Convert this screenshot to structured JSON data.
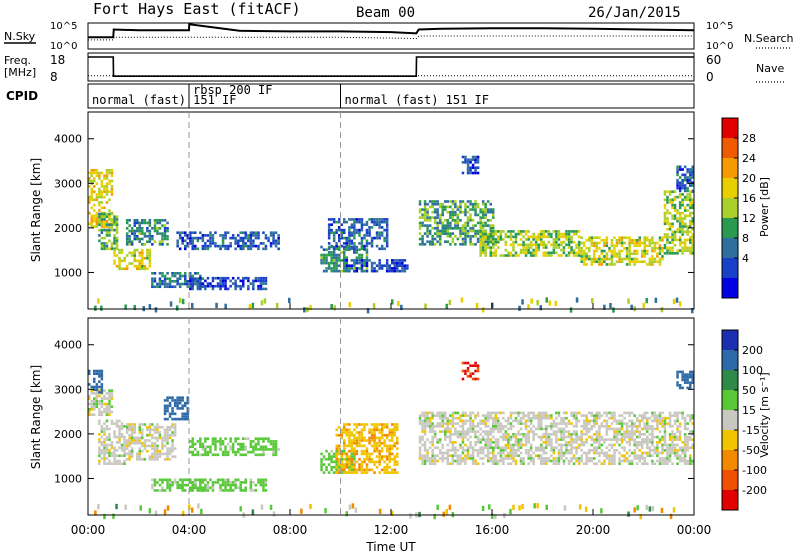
{
  "header": {
    "site": "Fort Hays East (fitACF)",
    "beam": "Beam 00",
    "date": "26/Jan/2015"
  },
  "chart_data": [
    {
      "type": "line",
      "panel": "noise",
      "left_label": "N.Sky",
      "right_label": "N.Search",
      "left_ticks": [
        "10^5",
        "10^0"
      ],
      "right_ticks": [
        "10^5",
        "10^0"
      ],
      "x": [
        0,
        0.5,
        1,
        1.02,
        2,
        4,
        4.01,
        6,
        8,
        10,
        12,
        13,
        13.1,
        14,
        16,
        18,
        20,
        22,
        24
      ],
      "sky": [
        0.45,
        0.45,
        0.45,
        0.75,
        0.72,
        0.72,
        0.95,
        0.7,
        0.68,
        0.68,
        0.65,
        0.6,
        0.75,
        0.78,
        0.8,
        0.8,
        0.78,
        0.75,
        0.72
      ],
      "search": [
        0.35,
        0.35,
        0.35,
        0.45,
        0.45,
        0.45,
        0.45,
        0.45,
        0.45,
        0.45,
        0.42,
        0.4,
        0.5,
        0.5,
        0.5,
        0.5,
        0.5,
        0.5,
        0.5
      ]
    },
    {
      "type": "line",
      "panel": "frequency",
      "left_label": "Freq.",
      "left_unit": "[MHz]",
      "right_label": "Nave",
      "left_ticks": [
        "18",
        "8"
      ],
      "right_ticks": [
        "60",
        "0"
      ],
      "freq_x": [
        0,
        1,
        1.01,
        13,
        13.01,
        24
      ],
      "freq_mhz": [
        18,
        18,
        10,
        10,
        18,
        18
      ],
      "nave_x": [
        0,
        24
      ],
      "nave": [
        8,
        8
      ]
    },
    {
      "type": "table",
      "panel": "cpid",
      "label": "CPID",
      "segments": [
        {
          "start": 0,
          "name": "normal (fast) 151 IF"
        },
        {
          "start": 4,
          "name": "rbsp 200 IF"
        },
        {
          "start": 10,
          "name": "normal (fast) 151 IF"
        }
      ]
    },
    {
      "type": "heatmap",
      "panel": "power",
      "ylabel": "Slant Range [km]",
      "yticks": [
        1000,
        2000,
        3000,
        4000
      ],
      "ylim": [
        180,
        4600
      ],
      "xlim": [
        0,
        24
      ],
      "colorbar_label": "Power [dB]",
      "colorbar_ticks": [
        "28",
        "24",
        "20",
        "16",
        "12",
        "8",
        "4"
      ],
      "colorbar_colors": [
        "#e00000",
        "#f05a00",
        "#f59a00",
        "#e8d000",
        "#a8cf2a",
        "#2a9a50",
        "#2f6fa0",
        "#1840c8",
        "#0000e0"
      ],
      "echo_regions": [
        {
          "t0": 0.0,
          "t1": 0.9,
          "r0": 2000,
          "r1": 3300,
          "p": 20
        },
        {
          "t0": 0.4,
          "t1": 1.2,
          "r0": 1500,
          "r1": 2300,
          "p": 14
        },
        {
          "t0": 1.0,
          "t1": 2.5,
          "r0": 1050,
          "r1": 1500,
          "p": 18
        },
        {
          "t0": 1.5,
          "t1": 3.2,
          "r0": 1600,
          "r1": 2200,
          "p": 10
        },
        {
          "t0": 2.5,
          "t1": 4.5,
          "r0": 650,
          "r1": 1000,
          "p": 8
        },
        {
          "t0": 3.5,
          "t1": 7.5,
          "r0": 1500,
          "r1": 1900,
          "p": 6
        },
        {
          "t0": 4.0,
          "t1": 7.0,
          "r0": 600,
          "r1": 900,
          "p": 5
        },
        {
          "t0": 9.2,
          "t1": 11.0,
          "r0": 1000,
          "r1": 1600,
          "p": 10
        },
        {
          "t0": 9.5,
          "t1": 11.8,
          "r0": 1500,
          "r1": 2200,
          "p": 6
        },
        {
          "t0": 10.2,
          "t1": 12.6,
          "r0": 1000,
          "r1": 1300,
          "p": 4
        },
        {
          "t0": 14.8,
          "t1": 15.4,
          "r0": 3200,
          "r1": 3600,
          "p": 5
        },
        {
          "t0": 13.1,
          "t1": 16.0,
          "r0": 1600,
          "r1": 2600,
          "p": 12
        },
        {
          "t0": 15.5,
          "t1": 19.5,
          "r0": 1350,
          "r1": 1950,
          "p": 16
        },
        {
          "t0": 19.5,
          "t1": 22.8,
          "r0": 1150,
          "r1": 1800,
          "p": 18
        },
        {
          "t0": 22.8,
          "t1": 24.0,
          "r0": 1400,
          "r1": 2800,
          "p": 16
        },
        {
          "t0": 23.3,
          "t1": 24.0,
          "r0": 2800,
          "r1": 3400,
          "p": 6
        }
      ]
    },
    {
      "type": "heatmap",
      "panel": "velocity",
      "ylabel": "Slant Range [km]",
      "yticks": [
        1000,
        2000,
        3000,
        4000
      ],
      "ylim": [
        180,
        4600
      ],
      "xlim": [
        0,
        24
      ],
      "xticks": [
        "00:00",
        "04:00",
        "08:00",
        "12:00",
        "16:00",
        "20:00",
        "00:00"
      ],
      "xlabel": "Time UT",
      "colorbar_label": "Velocity [m s⁻¹]",
      "colorbar_ticks": [
        "200",
        "100",
        "50",
        "15",
        "-15",
        "-50",
        "-100",
        "-200"
      ],
      "colorbar_colors": [
        "#1c2fb0",
        "#2e6aa8",
        "#2e8a48",
        "#58c838",
        "#c8c8c0",
        "#f2c400",
        "#f28a00",
        "#f05000",
        "#e00000"
      ],
      "echo_regions": [
        {
          "t0": 0.0,
          "t1": 0.9,
          "r0": 2400,
          "r1": 3000,
          "v": 0
        },
        {
          "t0": 0.0,
          "t1": 0.6,
          "r0": 2900,
          "r1": 3400,
          "v": 150
        },
        {
          "t0": 0.4,
          "t1": 1.5,
          "r0": 1300,
          "r1": 2300,
          "v": 0
        },
        {
          "t0": 1.5,
          "t1": 3.5,
          "r0": 1400,
          "r1": 2200,
          "v": 0
        },
        {
          "t0": 3.0,
          "t1": 4.0,
          "r0": 2300,
          "r1": 2800,
          "v": 150
        },
        {
          "t0": 2.5,
          "t1": 4.5,
          "r0": 700,
          "r1": 1000,
          "v": 30
        },
        {
          "t0": 4.0,
          "t1": 7.5,
          "r0": 1500,
          "r1": 1900,
          "v": 30
        },
        {
          "t0": 4.0,
          "t1": 7.0,
          "r0": 700,
          "r1": 950,
          "v": 30
        },
        {
          "t0": 9.2,
          "t1": 10.5,
          "r0": 1100,
          "r1": 1600,
          "v": 30
        },
        {
          "t0": 9.8,
          "t1": 12.2,
          "r0": 1100,
          "r1": 2200,
          "v": -40
        },
        {
          "t0": 14.8,
          "t1": 15.4,
          "r0": 3200,
          "r1": 3600,
          "v": -200
        },
        {
          "t0": 13.1,
          "t1": 24.0,
          "r0": 1300,
          "r1": 2500,
          "v": 0
        },
        {
          "t0": 23.3,
          "t1": 24.0,
          "r0": 3000,
          "r1": 3400,
          "v": 150
        }
      ]
    }
  ]
}
